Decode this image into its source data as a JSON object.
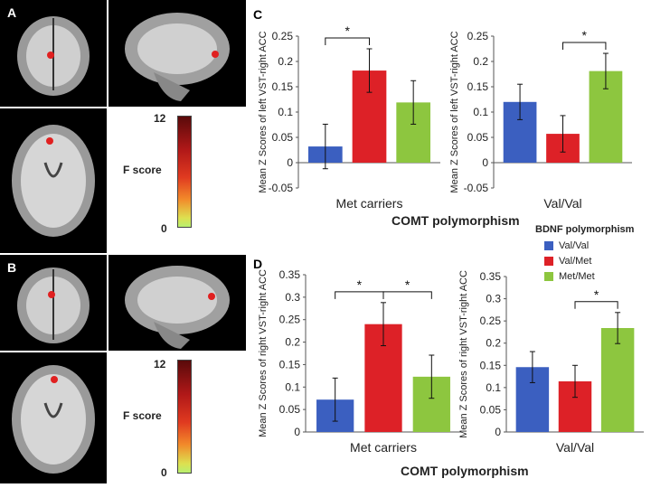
{
  "panels": {
    "A": "A",
    "B": "B",
    "C": "C",
    "D": "D"
  },
  "scale": {
    "max": "12",
    "min": "0",
    "label": "F score"
  },
  "legend": {
    "title": "BDNF polymorphism",
    "items": [
      {
        "name": "Val/Val",
        "color": "#3b5fc0"
      },
      {
        "name": "Val/Met",
        "color": "#dd2127"
      },
      {
        "name": "Met/Met",
        "color": "#8dc63f"
      }
    ]
  },
  "xtitle_c": "COMT polymorphism",
  "xtitle_d": "COMT polymorphism",
  "chart_data": [
    {
      "id": "C-left",
      "type": "bar",
      "ylabel": "Mean Z  Scores of left VST-right ACC",
      "category": "Met carriers",
      "ylim": [
        -0.05,
        0.25
      ],
      "ticks": [
        "0.25",
        "0.2",
        "0.15",
        "0.1",
        "0.05",
        "0",
        "-0.05"
      ],
      "series": [
        "Val/Val",
        "Val/Met",
        "Met/Met"
      ],
      "values": [
        0.032,
        0.182,
        0.119
      ],
      "errors": [
        0.044,
        0.043,
        0.043
      ],
      "sig": [
        {
          "from": 0,
          "to": 1,
          "label": "*"
        }
      ]
    },
    {
      "id": "C-right",
      "type": "bar",
      "ylabel": "Mean Z  Scores of left VST-right ACC",
      "category": "Val/Val",
      "ylim": [
        -0.05,
        0.25
      ],
      "ticks": [
        "0.25",
        "0.2",
        "0.15",
        "0.1",
        "0.05",
        "0",
        "-0.05"
      ],
      "series": [
        "Val/Val",
        "Val/Met",
        "Met/Met"
      ],
      "values": [
        0.12,
        0.057,
        0.181
      ],
      "errors": [
        0.035,
        0.036,
        0.035
      ],
      "sig": [
        {
          "from": 1,
          "to": 2,
          "label": "*"
        }
      ]
    },
    {
      "id": "D-left",
      "type": "bar",
      "ylabel": "Mean Z  Scores of right VST-right ACC",
      "category": "Met carriers",
      "ylim": [
        0,
        0.35
      ],
      "ticks": [
        "0.35",
        "0.3",
        "0.25",
        "0.2",
        "0.15",
        "0.1",
        "0.05",
        "0"
      ],
      "series": [
        "Val/Val",
        "Val/Met",
        "Met/Met"
      ],
      "values": [
        0.072,
        0.24,
        0.123
      ],
      "errors": [
        0.048,
        0.048,
        0.048
      ],
      "sig": [
        {
          "from": 0,
          "to": 1,
          "label": "*"
        },
        {
          "from": 1,
          "to": 2,
          "label": "*"
        }
      ]
    },
    {
      "id": "D-right",
      "type": "bar",
      "ylabel": "Mean Z  Scores of right VST-right ACC",
      "category": "Val/Val",
      "ylim": [
        0,
        0.35
      ],
      "ticks": [
        "0.35",
        "0.3",
        "0.25",
        "0.2",
        "0.15",
        "0.1",
        "0.05",
        "0"
      ],
      "series": [
        "Val/Val",
        "Val/Met",
        "Met/Met"
      ],
      "values": [
        0.146,
        0.114,
        0.234
      ],
      "errors": [
        0.035,
        0.036,
        0.035
      ],
      "sig": [
        {
          "from": 1,
          "to": 2,
          "label": "*"
        }
      ]
    }
  ]
}
